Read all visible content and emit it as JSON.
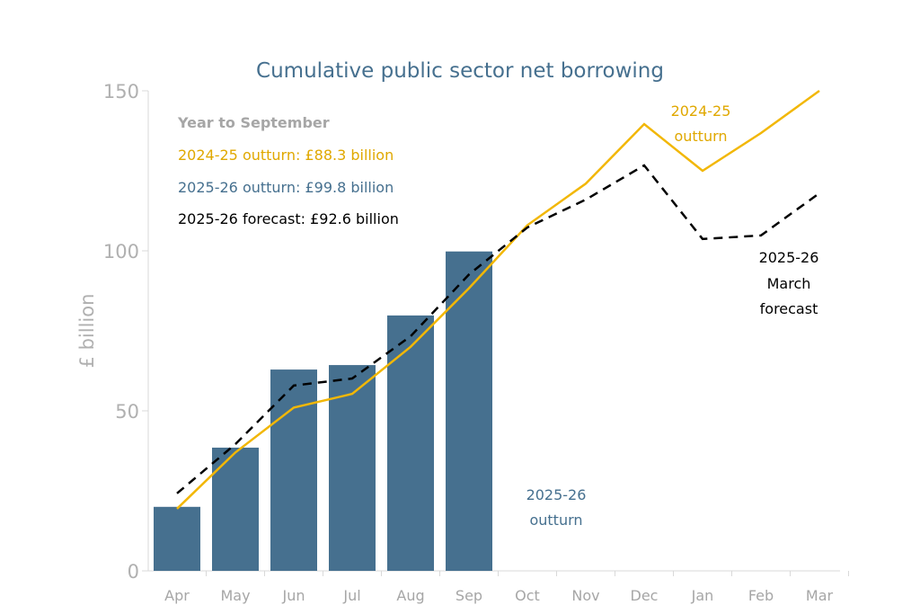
{
  "chart_data": {
    "type": "bar+line",
    "title": "Cumulative public sector net borrowing",
    "ylabel": "£ billion",
    "xlabel": "",
    "ylim": [
      0,
      150
    ],
    "yticks": [
      0,
      50,
      100,
      150
    ],
    "grid": false,
    "categories": [
      "Apr",
      "May",
      "Jun",
      "Jul",
      "Aug",
      "Sep",
      "Oct",
      "Nov",
      "Dec",
      "Jan",
      "Feb",
      "Mar"
    ],
    "series": [
      {
        "name": "2025-26 outturn",
        "type": "bar",
        "color": "#46708f",
        "values": [
          20.0,
          38.5,
          62.9,
          64.3,
          79.8,
          99.8,
          null,
          null,
          null,
          null,
          null,
          null
        ]
      },
      {
        "name": "2024-25 outturn",
        "type": "line",
        "color": "#f2b705",
        "values": [
          19.4,
          37.0,
          51.0,
          55.3,
          70.0,
          88.3,
          108.0,
          121.0,
          139.6,
          125.0,
          136.8,
          150.0
        ]
      },
      {
        "name": "2025-26 March forecast",
        "type": "line",
        "dash": true,
        "color": "#000000",
        "values": [
          24.2,
          39.6,
          57.9,
          60.1,
          73.3,
          92.6,
          107.3,
          116.0,
          126.7,
          103.7,
          104.8,
          118.0
        ]
      }
    ],
    "annotations": {
      "heading": "Year to September",
      "line1": "2024-25 outturn: £88.3 billion",
      "line2": "2025-26 outturn: £99.8 billion",
      "line3": "2025-26 forecast: £92.6 billion",
      "label_2425": [
        "2024-25",
        "outturn"
      ],
      "label_forecast": [
        "2025-26",
        "March",
        "forecast"
      ],
      "label_2526": [
        "2025-26",
        "outturn"
      ]
    }
  }
}
